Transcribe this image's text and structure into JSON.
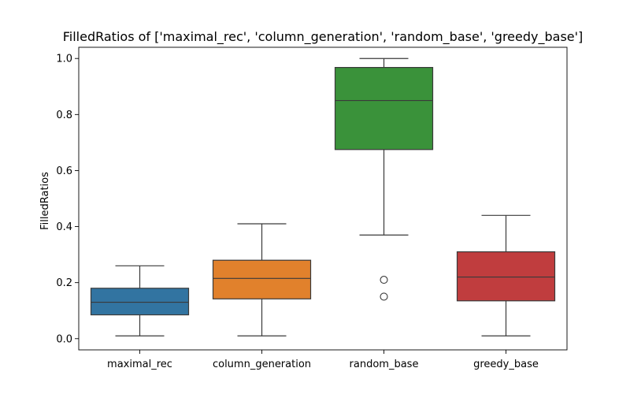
{
  "chart_data": {
    "type": "box",
    "title": "FilledRatios of ['maximal_rec', 'column_generation', 'random_base', 'greedy_base']",
    "xlabel": "",
    "ylabel": "FilledRatios",
    "ylim": [
      -0.04,
      1.04
    ],
    "yticks": [
      0.0,
      0.2,
      0.4,
      0.6,
      0.8,
      1.0
    ],
    "ytick_labels": [
      "0.0",
      "0.2",
      "0.4",
      "0.6",
      "0.8",
      "1.0"
    ],
    "grid": false,
    "categories": [
      "maximal_rec",
      "column_generation",
      "random_base",
      "greedy_base"
    ],
    "boxes": [
      {
        "category": "maximal_rec",
        "color": "#3274a1",
        "whisker_low": 0.01,
        "q1": 0.085,
        "median": 0.13,
        "q3": 0.18,
        "whisker_high": 0.26,
        "fliers": []
      },
      {
        "category": "column_generation",
        "color": "#e1812c",
        "whisker_low": 0.01,
        "q1": 0.142,
        "median": 0.215,
        "q3": 0.28,
        "whisker_high": 0.41,
        "fliers": []
      },
      {
        "category": "random_base",
        "color": "#3a923a",
        "whisker_low": 0.37,
        "q1": 0.675,
        "median": 0.85,
        "q3": 0.968,
        "whisker_high": 1.0,
        "fliers": [
          0.15,
          0.21
        ]
      },
      {
        "category": "greedy_base",
        "color": "#c03d3e",
        "whisker_low": 0.01,
        "q1": 0.135,
        "median": 0.22,
        "q3": 0.31,
        "whisker_high": 0.44,
        "fliers": []
      }
    ]
  }
}
